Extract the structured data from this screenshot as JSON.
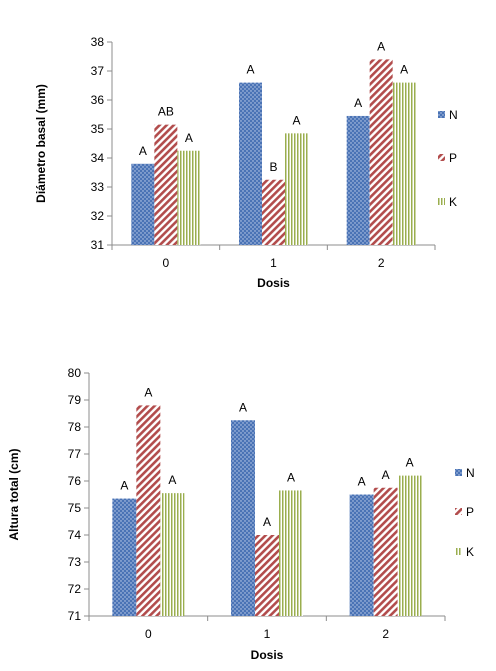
{
  "colors": {
    "N": "#4a73b5",
    "P": "#b24c4c",
    "K": "#9aae4e",
    "axis": "#8c8c8c"
  },
  "chart_data": [
    {
      "type": "bar",
      "xlabel": "Dosis",
      "ylabel": "Diámetro basal (mm)",
      "categories": [
        "0",
        "1",
        "2"
      ],
      "ylim": [
        31,
        38
      ],
      "yticks": [
        31,
        32,
        33,
        34,
        35,
        36,
        37,
        38
      ],
      "legend": "right",
      "series": [
        {
          "name": "N",
          "values": [
            33.8,
            36.6,
            35.45
          ],
          "labels": [
            "A",
            "A",
            "A"
          ]
        },
        {
          "name": "P",
          "values": [
            35.15,
            33.25,
            37.4
          ],
          "labels": [
            "AB",
            "B",
            "A"
          ]
        },
        {
          "name": "K",
          "values": [
            34.25,
            34.85,
            36.6
          ],
          "labels": [
            "A",
            "A",
            "A"
          ]
        }
      ]
    },
    {
      "type": "bar",
      "xlabel": "Dosis",
      "ylabel": "Altura total (cm)",
      "categories": [
        "0",
        "1",
        "2"
      ],
      "ylim": [
        71,
        80
      ],
      "yticks": [
        71,
        72,
        73,
        74,
        75,
        76,
        77,
        78,
        79,
        80
      ],
      "legend": "right",
      "series": [
        {
          "name": "N",
          "values": [
            75.35,
            78.25,
            75.5
          ],
          "labels": [
            "A",
            "A",
            "A"
          ]
        },
        {
          "name": "P",
          "values": [
            78.8,
            74.0,
            75.75
          ],
          "labels": [
            "A",
            "A",
            "A"
          ]
        },
        {
          "name": "K",
          "values": [
            75.55,
            75.65,
            76.2
          ],
          "labels": [
            "A",
            "A",
            "A"
          ]
        }
      ]
    }
  ]
}
